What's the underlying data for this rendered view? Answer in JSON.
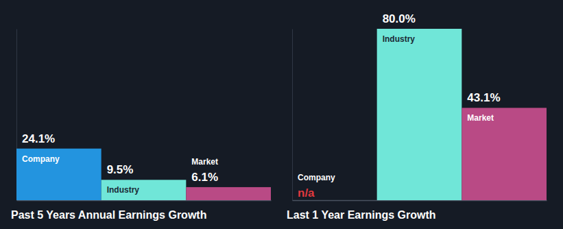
{
  "chart_data": [
    {
      "type": "bar",
      "title": "Past 5 Years Annual Earnings Growth",
      "categories": [
        "Company",
        "Industry",
        "Market"
      ],
      "values": [
        24.1,
        9.5,
        6.1
      ],
      "value_labels": [
        "24.1%",
        "9.5%",
        "6.1%"
      ],
      "colors": [
        "#2394df",
        "#70e6d8",
        "#b94a85"
      ],
      "ylim": [
        0,
        80
      ],
      "yticks": [],
      "data_labels": true,
      "tick_labels": false
    },
    {
      "type": "bar",
      "title": "Last 1 Year Earnings Growth",
      "categories": [
        "Company",
        "Industry",
        "Market"
      ],
      "values": [
        null,
        80.0,
        43.1
      ],
      "value_labels": [
        "n/a",
        "80.0%",
        "43.1%"
      ],
      "colors": [
        "#2394df",
        "#70e6d8",
        "#b94a85"
      ],
      "ylim": [
        0,
        80
      ],
      "yticks": [],
      "data_labels": true,
      "tick_labels": false
    }
  ]
}
